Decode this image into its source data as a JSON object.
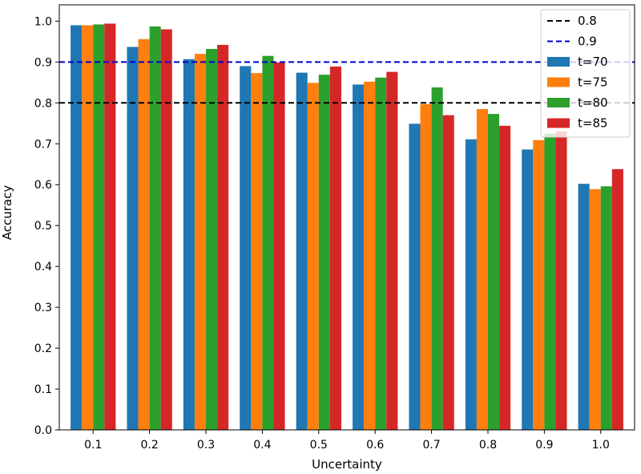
{
  "chart_data": {
    "type": "bar",
    "title": "",
    "xlabel": "Uncertainty",
    "ylabel": "Accuracy",
    "categories": [
      "0.1",
      "0.2",
      "0.3",
      "0.4",
      "0.5",
      "0.6",
      "0.7",
      "0.8",
      "0.9",
      "1.0"
    ],
    "ylim": [
      0,
      1.04
    ],
    "yticks": [
      "0.0",
      "0.1",
      "0.2",
      "0.3",
      "0.4",
      "0.5",
      "0.6",
      "0.7",
      "0.8",
      "0.9",
      "1.0"
    ],
    "series": [
      {
        "name": "t=70",
        "color": "#1f77b4",
        "values": [
          0.99,
          0.937,
          0.907,
          0.89,
          0.874,
          0.845,
          0.749,
          0.711,
          0.686,
          0.602
        ]
      },
      {
        "name": "t=75",
        "color": "#ff7f0e",
        "values": [
          0.99,
          0.956,
          0.92,
          0.873,
          0.849,
          0.852,
          0.797,
          0.785,
          0.709,
          0.589
        ]
      },
      {
        "name": "t=80",
        "color": "#2ca02c",
        "values": [
          0.992,
          0.987,
          0.932,
          0.915,
          0.869,
          0.862,
          0.838,
          0.773,
          0.725,
          0.596
        ]
      },
      {
        "name": "t=85",
        "color": "#d62728",
        "values": [
          0.994,
          0.98,
          0.942,
          0.899,
          0.889,
          0.876,
          0.77,
          0.744,
          0.73,
          0.638
        ]
      }
    ],
    "reference_lines": [
      {
        "name": "0.8",
        "value": 0.8,
        "color": "#000000",
        "style": "dashed"
      },
      {
        "name": "0.9",
        "value": 0.9,
        "color": "#0000cc",
        "style": "dashed"
      }
    ],
    "legend_position": "top-right",
    "grid": false
  }
}
